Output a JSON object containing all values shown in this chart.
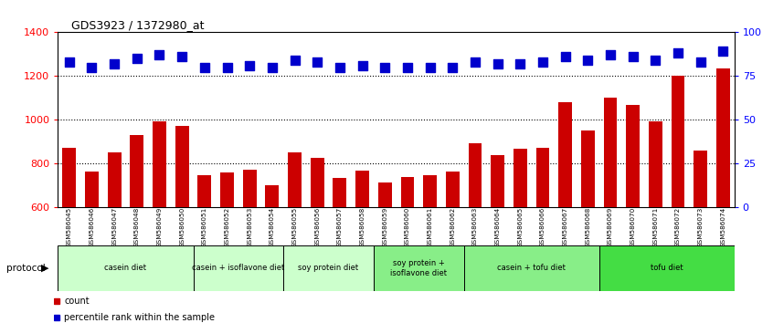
{
  "title": "GDS3923 / 1372980_at",
  "samples": [
    "GSM586045",
    "GSM586046",
    "GSM586047",
    "GSM586048",
    "GSM586049",
    "GSM586050",
    "GSM586051",
    "GSM586052",
    "GSM586053",
    "GSM586054",
    "GSM586055",
    "GSM586056",
    "GSM586057",
    "GSM586058",
    "GSM586059",
    "GSM586060",
    "GSM586061",
    "GSM586062",
    "GSM586063",
    "GSM586064",
    "GSM586065",
    "GSM586066",
    "GSM586067",
    "GSM586068",
    "GSM586069",
    "GSM586070",
    "GSM586071",
    "GSM586072",
    "GSM586073",
    "GSM586074"
  ],
  "counts": [
    870,
    762,
    848,
    930,
    990,
    970,
    745,
    757,
    770,
    700,
    850,
    825,
    730,
    765,
    710,
    735,
    745,
    760,
    890,
    838,
    865,
    870,
    1080,
    950,
    1100,
    1065,
    990,
    1200,
    858,
    1235
  ],
  "percentile_ranks": [
    83,
    80,
    82,
    85,
    87,
    86,
    80,
    80,
    81,
    80,
    84,
    83,
    80,
    81,
    80,
    80,
    80,
    80,
    83,
    82,
    82,
    83,
    86,
    84,
    87,
    86,
    84,
    88,
    83,
    89
  ],
  "bar_color": "#cc0000",
  "dot_color": "#0000cc",
  "ylim_left": [
    600,
    1400
  ],
  "ylim_right": [
    0,
    100
  ],
  "yticks_left": [
    600,
    800,
    1000,
    1200,
    1400
  ],
  "yticks_right": [
    0,
    25,
    50,
    75,
    100
  ],
  "dotted_lines": [
    800,
    1000,
    1200
  ],
  "groups": [
    {
      "label": "casein diet",
      "start": 0,
      "end": 5,
      "color": "#ccffcc"
    },
    {
      "label": "casein + isoflavone diet",
      "start": 6,
      "end": 9,
      "color": "#ccffcc"
    },
    {
      "label": "soy protein diet",
      "start": 10,
      "end": 13,
      "color": "#ccffcc"
    },
    {
      "label": "soy protein +\nisoflavone diet",
      "start": 14,
      "end": 17,
      "color": "#88ee88"
    },
    {
      "label": "casein + tofu diet",
      "start": 18,
      "end": 23,
      "color": "#88ee88"
    },
    {
      "label": "tofu diet",
      "start": 24,
      "end": 29,
      "color": "#44dd44"
    }
  ],
  "legend_count_label": "count",
  "legend_pct_label": "percentile rank within the sample",
  "protocol_label": "protocol"
}
